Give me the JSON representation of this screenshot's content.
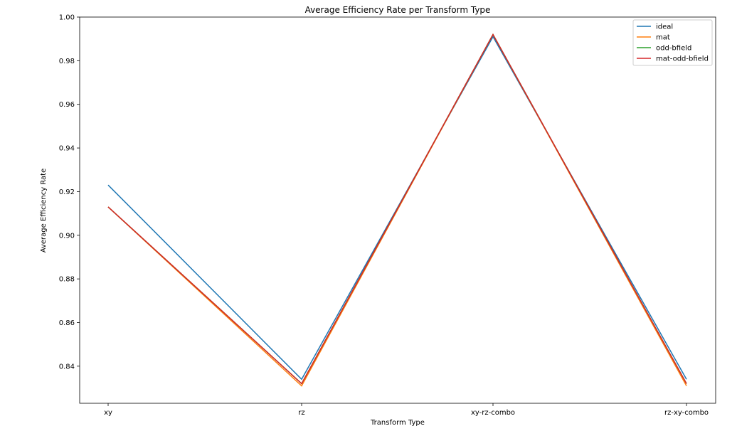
{
  "chart_data": {
    "type": "line",
    "title": "Average Efficiency Rate per Transform Type",
    "xlabel": "Transform Type",
    "ylabel": "Average Efficiency Rate",
    "categories": [
      "xy",
      "rz",
      "xy-rz-combo",
      "rz-xy-combo"
    ],
    "ylim": [
      0.823,
      1.0
    ],
    "yticks": [
      "0.84",
      "0.86",
      "0.88",
      "0.90",
      "0.92",
      "0.94",
      "0.96",
      "0.98",
      "1.00"
    ],
    "grid": false,
    "legend_position": "top-right",
    "series": [
      {
        "name": "ideal",
        "color": "#1f77b4",
        "values": [
          0.923,
          0.834,
          0.991,
          0.834
        ]
      },
      {
        "name": "mat",
        "color": "#ff7f0e",
        "values": [
          0.913,
          0.831,
          0.992,
          0.831
        ]
      },
      {
        "name": "odd-bfield",
        "color": "#2ca02c",
        "values": [
          0.913,
          0.832,
          0.992,
          0.832
        ]
      },
      {
        "name": "mat-odd-bfield",
        "color": "#d62728",
        "values": [
          0.913,
          0.832,
          0.992,
          0.832
        ]
      }
    ]
  }
}
